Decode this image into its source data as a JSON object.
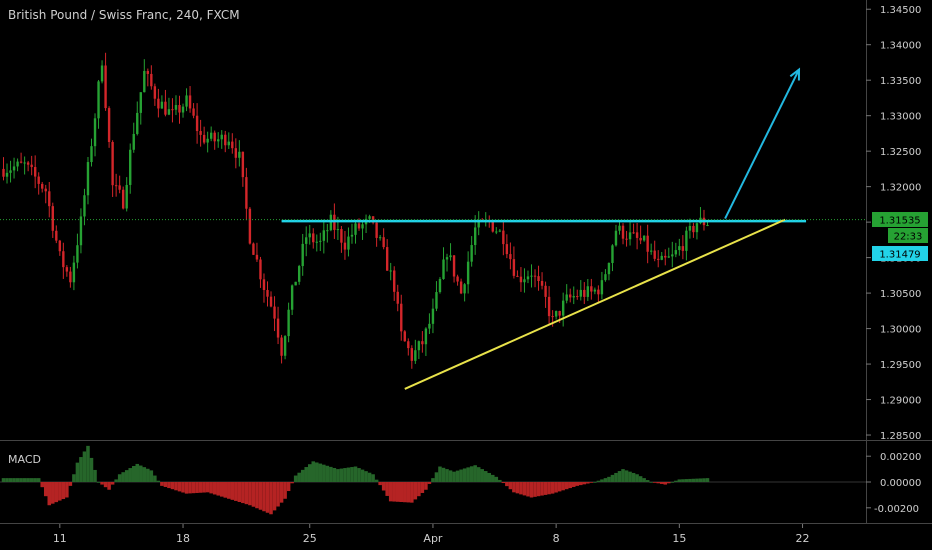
{
  "header": {
    "title": "British Pound / Swiss Franc, 240, FXCM"
  },
  "indicator": {
    "name": "MACD"
  },
  "price_tags": {
    "current": "1.31535",
    "countdown": "22:33",
    "level": "1.31479"
  },
  "colors": {
    "background": "#000000",
    "up_candle": "#26a233",
    "down_candle": "#d3262a",
    "resistance": "#22d3e8",
    "trendline": "#e8e24a",
    "arrow": "#22b8e0",
    "hist_up": "#26662a",
    "hist_down": "#b52323",
    "text": "#cfcfcf"
  },
  "chart_data": [
    {
      "type": "candlestick",
      "title": "British Pound / Swiss Franc, 240, FXCM",
      "y_ticks": [
        "1.34500",
        "1.34000",
        "1.33500",
        "1.33000",
        "1.32500",
        "1.32000",
        "1.31500",
        "1.31000",
        "1.30500",
        "1.30000",
        "1.29500",
        "1.29000",
        "1.28500"
      ],
      "x_ticks": [
        "11",
        "18",
        "25",
        "Apr",
        "8",
        "15",
        "22"
      ],
      "ylim": [
        1.2843,
        1.3463
      ],
      "series": [
        {
          "anchors": [
            [
              0,
              1.3225
            ],
            [
              6,
              1.323
            ],
            [
              12,
              1.3195
            ],
            [
              16,
              1.31
            ],
            [
              19,
              1.307
            ],
            [
              22,
              1.315
            ],
            [
              26,
              1.33
            ],
            [
              28,
              1.338
            ],
            [
              31,
              1.32
            ],
            [
              34,
              1.318
            ],
            [
              37,
              1.328
            ],
            [
              40,
              1.336
            ],
            [
              44,
              1.332
            ],
            [
              48,
              1.33
            ],
            [
              52,
              1.332
            ],
            [
              56,
              1.327
            ],
            [
              60,
              1.3265
            ],
            [
              64,
              1.327
            ],
            [
              67,
              1.324
            ],
            [
              70,
              1.313
            ],
            [
              74,
              1.306
            ],
            [
              77,
              1.302
            ],
            [
              79,
              1.297
            ],
            [
              82,
              1.305
            ],
            [
              86,
              1.313
            ],
            [
              90,
              1.312
            ],
            [
              93,
              1.315
            ],
            [
              97,
              1.312
            ],
            [
              100,
              1.314
            ],
            [
              104,
              1.315
            ],
            [
              107,
              1.312
            ],
            [
              111,
              1.306
            ],
            [
              113,
              1.299
            ],
            [
              116,
              1.296
            ],
            [
              119,
              1.298
            ],
            [
              122,
              1.302
            ],
            [
              126,
              1.311
            ],
            [
              130,
              1.305
            ],
            [
              134,
              1.314
            ],
            [
              138,
              1.315
            ],
            [
              142,
              1.313
            ],
            [
              146,
              1.307
            ],
            [
              150,
              1.308
            ],
            [
              154,
              1.304
            ],
            [
              156,
              1.301
            ],
            [
              160,
              1.304
            ],
            [
              164,
              1.305
            ],
            [
              167,
              1.305
            ],
            [
              170,
              1.306
            ],
            [
              174,
              1.314
            ],
            [
              178,
              1.313
            ],
            [
              182,
              1.312
            ],
            [
              186,
              1.309
            ],
            [
              190,
              1.31
            ],
            [
              193,
              1.312
            ],
            [
              197,
              1.315
            ],
            [
              200,
              1.315
            ]
          ]
        }
      ],
      "annotations": [
        {
          "name": "resistance",
          "price": 1.31515,
          "from_bar": 79,
          "to_bar": 228
        },
        {
          "name": "trendline",
          "from": [
            114,
            1.2915
          ],
          "to": [
            222,
            1.31535
          ]
        },
        {
          "name": "arrow",
          "from": [
            205,
            1.3155
          ],
          "to": [
            226,
            1.3365
          ]
        }
      ]
    },
    {
      "type": "bar",
      "title": "MACD",
      "y_ticks": [
        "0.00200",
        "0.00000",
        "-0.00200"
      ],
      "ylim": [
        -0.0031,
        0.0031
      ],
      "anchors": [
        [
          0,
          0.0003
        ],
        [
          10,
          0.0003
        ],
        [
          13,
          -0.0018
        ],
        [
          18,
          -0.0012
        ],
        [
          21,
          0.0015
        ],
        [
          24,
          0.0028
        ],
        [
          27,
          0.0
        ],
        [
          30,
          -0.0006
        ],
        [
          33,
          0.0006
        ],
        [
          38,
          0.0014
        ],
        [
          42,
          0.0009
        ],
        [
          45,
          -0.0003
        ],
        [
          52,
          -0.0009
        ],
        [
          58,
          -0.0008
        ],
        [
          64,
          -0.0013
        ],
        [
          70,
          -0.0018
        ],
        [
          76,
          -0.0025
        ],
        [
          80,
          -0.0013
        ],
        [
          83,
          0.0005
        ],
        [
          88,
          0.0016
        ],
        [
          95,
          0.001
        ],
        [
          100,
          0.0012
        ],
        [
          105,
          0.0006
        ],
        [
          110,
          -0.0015
        ],
        [
          116,
          -0.0016
        ],
        [
          120,
          -0.0006
        ],
        [
          124,
          0.0012
        ],
        [
          128,
          0.0008
        ],
        [
          134,
          0.0013
        ],
        [
          140,
          0.0004
        ],
        [
          145,
          -0.0008
        ],
        [
          150,
          -0.0012
        ],
        [
          156,
          -0.0009
        ],
        [
          163,
          -0.0003
        ],
        [
          168,
          0.0
        ],
        [
          172,
          0.0004
        ],
        [
          176,
          0.001
        ],
        [
          180,
          0.0006
        ],
        [
          184,
          0.0
        ],
        [
          188,
          -0.0002
        ],
        [
          192,
          0.0002
        ],
        [
          200,
          0.0003
        ]
      ]
    }
  ]
}
